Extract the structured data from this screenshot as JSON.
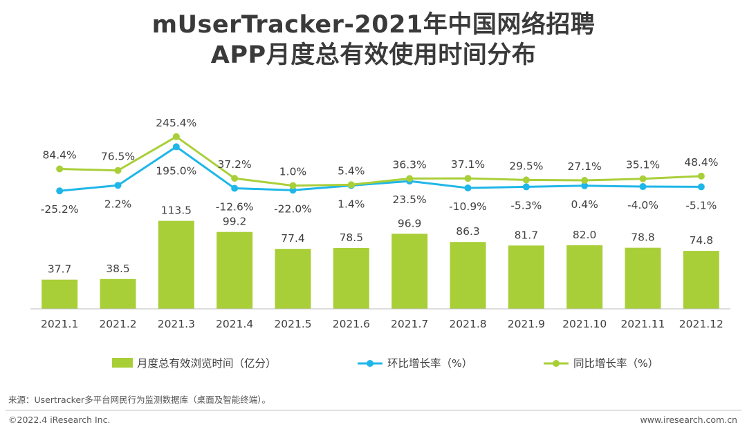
{
  "title": {
    "line1": "mUserTracker-2021年中国网络招聘",
    "line2": "APP月度总有效使用时间分布"
  },
  "chart_data": {
    "type": "bar",
    "categories": [
      "2021.1",
      "2021.2",
      "2021.3",
      "2021.4",
      "2021.5",
      "2021.6",
      "2021.7",
      "2021.8",
      "2021.9",
      "2021.10",
      "2021.11",
      "2021.12"
    ],
    "series": [
      {
        "name": "月度总有效浏览时间（亿分）",
        "type": "bar",
        "color": "#a9cf38",
        "values": [
          37.7,
          38.5,
          113.5,
          99.2,
          77.4,
          78.5,
          96.9,
          86.3,
          81.7,
          82.0,
          78.8,
          74.8
        ],
        "labels": [
          "37.7",
          "38.5",
          "113.5",
          "99.2",
          "77.4",
          "78.5",
          "96.9",
          "86.3",
          "81.7",
          "82.0",
          "78.8",
          "74.8"
        ]
      },
      {
        "name": "环比增长率（%）",
        "type": "line",
        "color": "#1fb6e8",
        "values": [
          -25.2,
          2.2,
          195.0,
          -12.6,
          -22.0,
          1.4,
          23.5,
          -10.9,
          -5.3,
          0.4,
          -4.0,
          -5.1
        ],
        "labels": [
          "-25.2%",
          "2.2%",
          "195.0%",
          "-12.6%",
          "-22.0%",
          "1.4%",
          "23.5%",
          "-10.9%",
          "-5.3%",
          "0.4%",
          "-4.0%",
          "-5.1%"
        ]
      },
      {
        "name": "同比增长率（%）",
        "type": "line",
        "color": "#a9cf38",
        "values": [
          84.4,
          76.5,
          245.4,
          37.2,
          1.0,
          5.4,
          36.3,
          37.1,
          29.5,
          27.1,
          35.1,
          48.4
        ],
        "labels": [
          "84.4%",
          "76.5%",
          "245.4%",
          "37.2%",
          "1.0%",
          "5.4%",
          "36.3%",
          "37.1%",
          "29.5%",
          "27.1%",
          "35.1%",
          "48.4%"
        ]
      }
    ],
    "bar_ylim": [
      0,
      180
    ],
    "line_ylim": [
      -170,
      300
    ],
    "legend_position": "bottom"
  },
  "footer": {
    "source": "来源：Usertracker多平台网民行为监测数据库（桌面及智能终端）。",
    "copyright": "©2022.4 iResearch Inc.",
    "website": "www.iresearch.com.cn"
  }
}
